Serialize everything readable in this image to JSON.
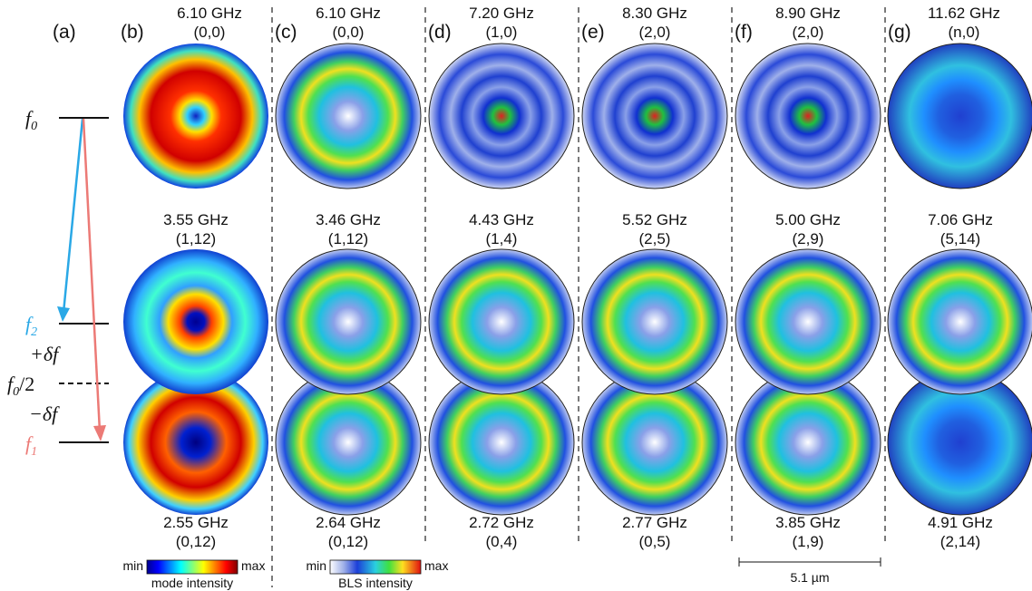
{
  "panel_labels": [
    "(a)",
    "(b)",
    "(c)",
    "(d)",
    "(e)",
    "(f)",
    "(g)"
  ],
  "energy_diagram": {
    "f0": "f",
    "f0_sub": "0",
    "f2": "f",
    "f2_sub": "2",
    "f1": "f",
    "f1_sub": "1",
    "half": "/2",
    "plus_df": "+δf",
    "minus_df": "−δf",
    "colors": {
      "f2": "#2aa8e6",
      "f1": "#ec7a76",
      "line": "#111111"
    }
  },
  "columns": [
    {
      "panel": "(b)",
      "top_freq": "6.10 GHz",
      "top_mode": "(0,0)",
      "mid_freq": "3.55 GHz",
      "mid_mode": "(1,12)",
      "bot_freq": "2.55 GHz",
      "bot_mode": "(0,12)",
      "mid_highlight": false,
      "bot_highlight": false,
      "images": [
        "simulation-ring-map",
        "simulation-two-ring-map",
        "simulation-petal-map"
      ]
    },
    {
      "panel": "(c)",
      "top_freq": "6.10 GHz",
      "top_mode": "(0,0)",
      "mid_freq": "3.46 GHz",
      "mid_mode": "(1,12)",
      "bot_freq": "2.64 GHz",
      "bot_mode": "(0,12)",
      "mid_highlight": false,
      "bot_highlight": false,
      "images": [
        "bls-map",
        "bls-map",
        "bls-map"
      ]
    },
    {
      "panel": "(d)",
      "top_freq": "7.20 GHz",
      "top_mode": "(1,0)",
      "mid_freq": "4.43 GHz",
      "mid_mode": "(1,4)",
      "bot_freq": "2.72 GHz",
      "bot_mode": "(0,4)",
      "mid_highlight": false,
      "bot_highlight": false,
      "images": [
        "bls-map",
        "bls-map",
        "bls-map"
      ]
    },
    {
      "panel": "(e)",
      "top_freq": "8.30 GHz",
      "top_mode": "(2,0)",
      "mid_freq": "5.52 GHz",
      "mid_mode": "(2,5)",
      "bot_freq": "2.77 GHz",
      "bot_mode": "(0,5)",
      "mid_highlight": true,
      "bot_highlight": false,
      "images": [
        "bls-map",
        "bls-map",
        "bls-map"
      ]
    },
    {
      "panel": "(f)",
      "top_freq": "8.90 GHz",
      "top_mode": "(2,0)",
      "mid_freq": "5.00 GHz",
      "mid_mode": "(2,9)",
      "bot_freq": "3.85 GHz",
      "bot_mode": "(1,9)",
      "mid_highlight": true,
      "bot_highlight": false,
      "images": [
        "bls-map",
        "bls-map",
        "bls-map"
      ]
    },
    {
      "panel": "(g)",
      "top_freq": "11.62 GHz",
      "top_mode": "(n,0)",
      "mid_freq": "7.06 GHz",
      "mid_mode": "(5,14)",
      "bot_freq": "4.91 GHz",
      "bot_mode": "(2,14)",
      "mid_highlight": true,
      "bot_highlight": true,
      "images": [
        "bls-map",
        "bls-map",
        "bls-map"
      ]
    }
  ],
  "colorbars": [
    {
      "min": "min",
      "max": "max",
      "caption": "mode intensity"
    },
    {
      "min": "min",
      "max": "max",
      "caption": "BLS intensity"
    }
  ],
  "scale_bar": {
    "label": "5.1 µm"
  },
  "colors": {
    "highlight": "#e8391d",
    "text": "#111111",
    "divider": "#222222"
  }
}
